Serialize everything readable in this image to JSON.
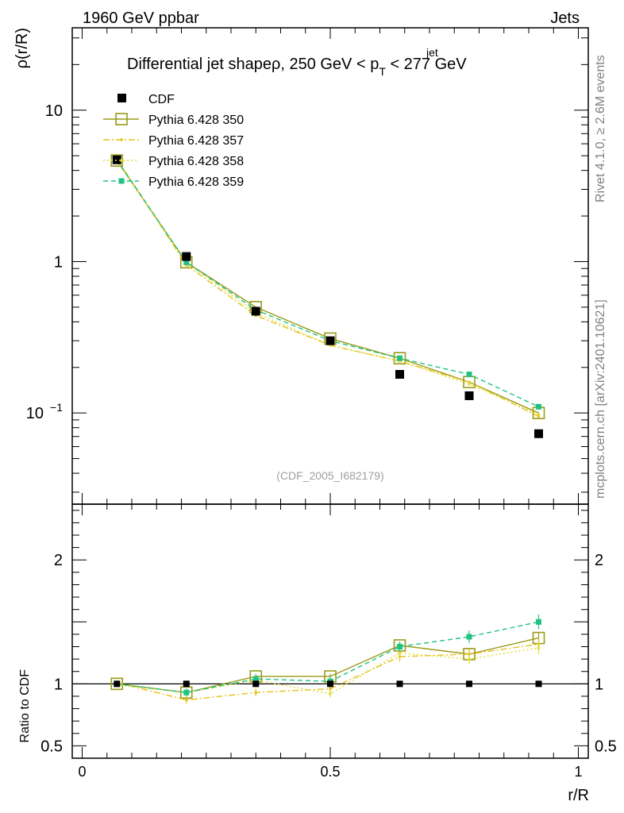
{
  "header": {
    "energy": "1960 GeV ppbar",
    "category": "Jets"
  },
  "side": {
    "version": "Rivet 4.1.0, ≥ 2.6M events",
    "source": "mcplots.cern.ch [arXiv:2401.10621]"
  },
  "chart_data": {
    "type": "line",
    "title": "Differential jet shapeρ, 250 GeV < p",
    "title_sup": "jet",
    "title_sub": "T",
    "title_tail": " < 277 GeV",
    "analysis_label": "(CDF_2005_I682179)",
    "xlabel": "r/R",
    "ylabel": "ρ(r/R)",
    "ratio_ylabel": "Ratio to CDF",
    "xlim": [
      -0.02,
      1.02
    ],
    "ylim": [
      0.025,
      35
    ],
    "ratio_ylim": [
      0.4,
      2.45
    ],
    "x_ticks": [
      {
        "v": 0,
        "label": "0"
      },
      {
        "v": 0.5,
        "label": "0.5"
      },
      {
        "v": 1,
        "label": "1"
      }
    ],
    "y_ticks": [
      {
        "v": 10,
        "label": "10"
      },
      {
        "v": 1,
        "label": "1"
      },
      {
        "v": 0.1,
        "label": "10",
        "sup": "−1"
      }
    ],
    "ratio_ticks": [
      {
        "v": 2,
        "label": "2"
      },
      {
        "v": 1,
        "label": "1"
      },
      {
        "v": 0.5,
        "label": "0.5"
      }
    ],
    "x": [
      0.07,
      0.21,
      0.35,
      0.5,
      0.64,
      0.78,
      0.92
    ],
    "data": {
      "name": "CDF",
      "values": [
        4.7,
        1.08,
        0.47,
        0.3,
        0.18,
        0.13,
        0.073
      ]
    },
    "series": [
      {
        "name": "Pythia 6.428 350",
        "color": "#9a9a1c",
        "style": "solid",
        "marker": "open-square",
        "values": [
          4.65,
          0.99,
          0.5,
          0.31,
          0.23,
          0.16,
          0.1
        ],
        "ratio": [
          1.0,
          0.93,
          1.06,
          1.06,
          1.31,
          1.24,
          1.37
        ],
        "ratio_err": [
          0.02,
          0.03,
          0.02,
          0.02,
          0.03,
          0.03,
          0.04
        ]
      },
      {
        "name": "Pythia 6.428 357",
        "color": "#e6c21a",
        "style": "dashdot",
        "marker": "small-dot",
        "values": [
          4.75,
          0.95,
          0.44,
          0.28,
          0.22,
          0.16,
          0.095
        ],
        "ratio": [
          1.01,
          0.87,
          0.93,
          0.96,
          1.22,
          1.24,
          1.32
        ],
        "ratio_err": [
          0.02,
          0.03,
          0.03,
          0.03,
          0.04,
          0.04,
          0.05
        ]
      },
      {
        "name": "Pythia 6.428 358",
        "color": "#dede30",
        "style": "dotted",
        "marker": "small-dot",
        "values": [
          4.6,
          0.98,
          0.46,
          0.28,
          0.22,
          0.155,
          0.098
        ],
        "ratio": [
          0.99,
          0.93,
          1.03,
          0.92,
          1.25,
          1.2,
          1.29
        ],
        "ratio_err": [
          0.02,
          0.03,
          0.03,
          0.03,
          0.04,
          0.04,
          0.05
        ]
      },
      {
        "name": "Pythia 6.428 359",
        "color": "#1ec382",
        "style": "dashed",
        "marker": "filled-square",
        "values": [
          4.7,
          0.99,
          0.48,
          0.3,
          0.23,
          0.18,
          0.11
        ],
        "ratio": [
          1.0,
          0.93,
          1.04,
          1.02,
          1.3,
          1.38,
          1.5
        ],
        "ratio_err": [
          0.02,
          0.03,
          0.03,
          0.03,
          0.04,
          0.05,
          0.06
        ]
      }
    ]
  }
}
